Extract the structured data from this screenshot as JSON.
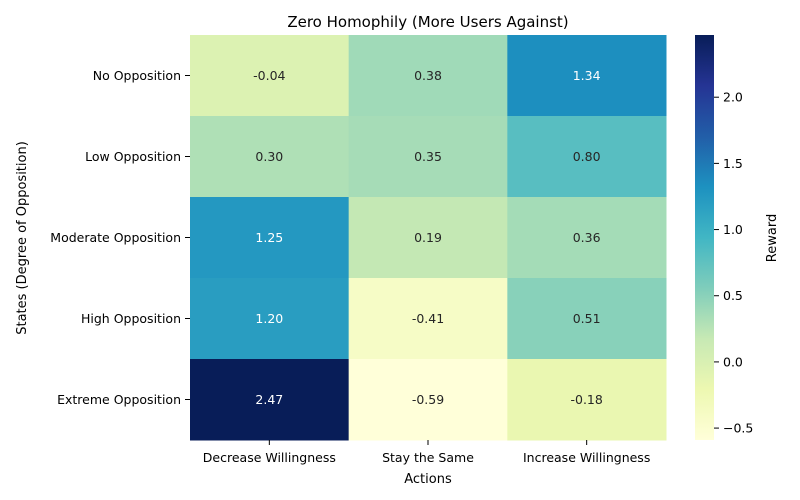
{
  "chart_data": {
    "type": "heatmap",
    "title": "Zero Homophily (More Users Against)",
    "xlabel": "Actions",
    "ylabel": "States (Degree of Opposition)",
    "x_categories": [
      "Decrease Willingness",
      "Stay the Same",
      "Increase Willingness"
    ],
    "y_categories": [
      "No Opposition",
      "Low Opposition",
      "Moderate Opposition",
      "High Opposition",
      "Extreme Opposition"
    ],
    "values": [
      [
        -0.04,
        0.38,
        1.34
      ],
      [
        0.3,
        0.35,
        0.8
      ],
      [
        1.25,
        0.19,
        0.36
      ],
      [
        1.2,
        -0.41,
        0.51
      ],
      [
        2.47,
        -0.59,
        -0.18
      ]
    ],
    "value_labels": [
      [
        "-0.04",
        "0.38",
        "1.34"
      ],
      [
        "0.30",
        "0.35",
        "0.80"
      ],
      [
        "1.25",
        "0.19",
        "0.36"
      ],
      [
        "1.20",
        "-0.41",
        "0.51"
      ],
      [
        "2.47",
        "-0.59",
        "-0.18"
      ]
    ],
    "colorbar": {
      "label": "Reward",
      "colormap": "YlGnBu",
      "range": [
        -0.59,
        2.47
      ],
      "ticks": [
        -0.5,
        0.0,
        0.5,
        1.0,
        1.5,
        2.0
      ],
      "tick_labels": [
        "−0.5",
        "0.0",
        "0.5",
        "1.0",
        "1.5",
        "2.0"
      ]
    },
    "grid": false
  }
}
